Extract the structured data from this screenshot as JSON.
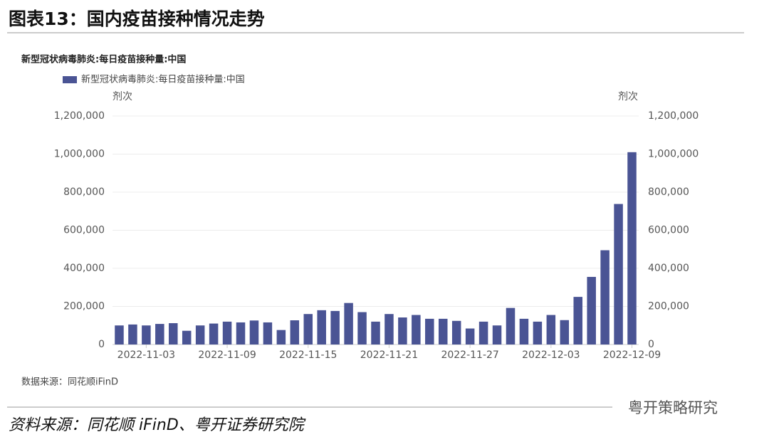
{
  "page_title": "图表13：国内疫苗接种情况走势",
  "source_note": "数据来源：同花顺iFinD",
  "footer": "资料来源：同花顺 iFinD、粤开证券研究院",
  "watermark": "粤开策略研究",
  "chart_data": {
    "type": "bar",
    "title": "新型冠状病毒肺炎:每日疫苗接种量:中国",
    "y_label": "剂次",
    "y2_label": "剂次",
    "categories": [
      null,
      null,
      "2022-11-03",
      null,
      null,
      null,
      null,
      null,
      "2022-11-09",
      null,
      null,
      null,
      null,
      null,
      "2022-11-15",
      null,
      null,
      null,
      null,
      null,
      "2022-11-21",
      null,
      null,
      null,
      null,
      null,
      "2022-11-27",
      null,
      null,
      null,
      null,
      null,
      "2022-12-03",
      null,
      null,
      null,
      null,
      null,
      "2022-12-09"
    ],
    "series": [
      {
        "name": "新型冠状病毒肺炎:每日疫苗接种量:中国",
        "color": "#4a5494",
        "values": [
          100000,
          105000,
          100000,
          108000,
          112000,
          72000,
          100000,
          110000,
          120000,
          116000,
          126000,
          116000,
          76000,
          127000,
          160000,
          180000,
          176000,
          218000,
          170000,
          120000,
          160000,
          142000,
          155000,
          135000,
          135000,
          124000,
          84000,
          120000,
          100000,
          192000,
          135000,
          120000,
          155000,
          128000,
          250000,
          355000,
          495000,
          738000,
          1010000
        ]
      }
    ],
    "ylim": [
      0,
      1200000
    ],
    "yticks": [
      0,
      {
        "value": 200000,
        "label": "200,000"
      },
      {
        "value": 400000,
        "label": "400,000"
      },
      {
        "value": 600000,
        "label": "600,000"
      },
      {
        "value": 800000,
        "label": "800,000"
      },
      {
        "value": 1000000,
        "label": "1,000,000"
      },
      {
        "value": 1200000,
        "label": "1,200,000"
      }
    ],
    "y2lim": [
      0,
      1200000
    ],
    "y2ticks": [
      0,
      {
        "value": 200000,
        "label": "200,000"
      },
      {
        "value": 400000,
        "label": "400,000"
      },
      {
        "value": 600000,
        "label": "600,000"
      },
      {
        "value": 800000,
        "label": "800,000"
      },
      {
        "value": 1000000,
        "label": "1,000,000"
      },
      {
        "value": 1200000,
        "label": "1,200,000"
      }
    ],
    "grid": true
  }
}
